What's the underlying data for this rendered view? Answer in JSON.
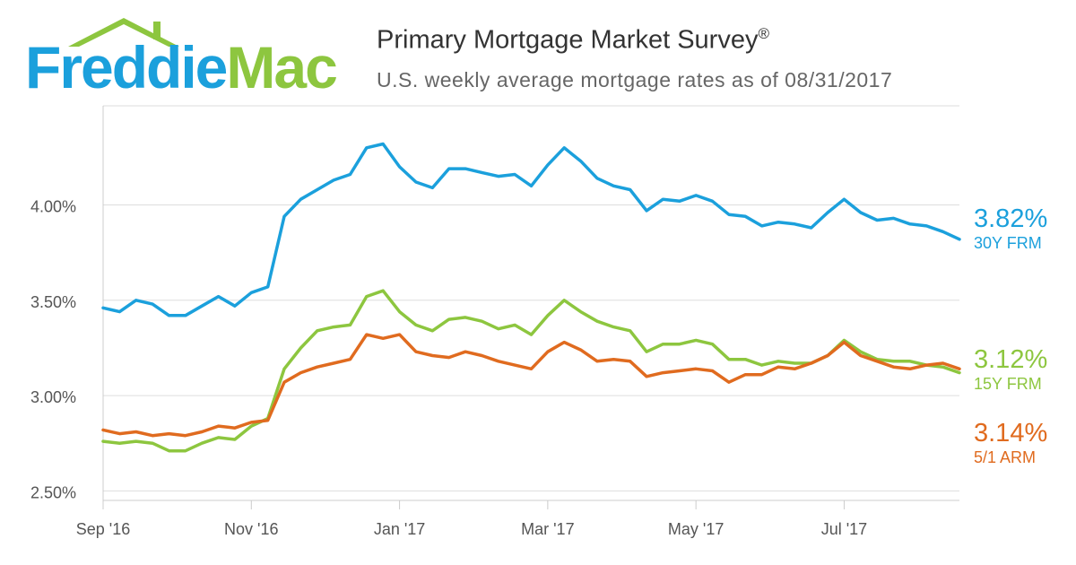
{
  "logo": {
    "text": "FreddieMac"
  },
  "header": {
    "title": "Primary Mortgage Market Survey",
    "title_mark": "®",
    "subtitle": "U.S. weekly average mortgage rates as of 08/31/2017"
  },
  "colors": {
    "frm30": "#1ba0dc",
    "frm15": "#8dc63f",
    "arm51": "#e06b1f",
    "brand_blue": "#1ba0dc",
    "brand_green": "#8dc63f"
  },
  "chart_data": {
    "type": "line",
    "title": "Primary Mortgage Market Survey",
    "subtitle": "U.S. weekly average mortgage rates as of 08/31/2017",
    "x_tick_labels": [
      "Sep '16",
      "Nov '16",
      "Jan '17",
      "Mar '17",
      "May '17",
      "Jul '17"
    ],
    "x_tick_indices": [
      0,
      9,
      18,
      27,
      36,
      45
    ],
    "y_tick_labels": [
      "2.50%",
      "3.00%",
      "3.50%",
      "4.00%"
    ],
    "y_tick_values": [
      2.5,
      3.0,
      3.5,
      4.0
    ],
    "ylim": [
      2.45,
      4.52
    ],
    "grid": true,
    "series": [
      {
        "key": "frm30",
        "name": "30Y FRM",
        "last_label": "3.82%",
        "values": [
          3.46,
          3.44,
          3.5,
          3.48,
          3.42,
          3.42,
          3.47,
          3.52,
          3.47,
          3.54,
          3.57,
          3.94,
          4.03,
          4.08,
          4.13,
          4.16,
          4.3,
          4.32,
          4.2,
          4.12,
          4.09,
          4.19,
          4.19,
          4.17,
          4.15,
          4.16,
          4.1,
          4.21,
          4.3,
          4.23,
          4.14,
          4.1,
          4.08,
          3.97,
          4.03,
          4.02,
          4.05,
          4.02,
          3.95,
          3.94,
          3.89,
          3.91,
          3.9,
          3.88,
          3.96,
          4.03,
          3.96,
          3.92,
          3.93,
          3.9,
          3.89,
          3.86,
          3.82
        ]
      },
      {
        "key": "frm15",
        "name": "15Y FRM",
        "last_label": "3.12%",
        "values": [
          2.76,
          2.75,
          2.76,
          2.75,
          2.71,
          2.71,
          2.75,
          2.78,
          2.77,
          2.84,
          2.88,
          3.14,
          3.25,
          3.34,
          3.36,
          3.37,
          3.52,
          3.55,
          3.44,
          3.37,
          3.34,
          3.4,
          3.41,
          3.39,
          3.35,
          3.37,
          3.32,
          3.42,
          3.5,
          3.44,
          3.39,
          3.36,
          3.34,
          3.23,
          3.27,
          3.27,
          3.29,
          3.27,
          3.19,
          3.19,
          3.16,
          3.18,
          3.17,
          3.17,
          3.21,
          3.29,
          3.23,
          3.19,
          3.18,
          3.18,
          3.16,
          3.15,
          3.12
        ]
      },
      {
        "key": "arm51",
        "name": "5/1 ARM",
        "last_label": "3.14%",
        "values": [
          2.82,
          2.8,
          2.81,
          2.79,
          2.8,
          2.79,
          2.81,
          2.84,
          2.83,
          2.86,
          2.87,
          3.07,
          3.12,
          3.15,
          3.17,
          3.19,
          3.32,
          3.3,
          3.32,
          3.23,
          3.21,
          3.2,
          3.23,
          3.21,
          3.18,
          3.16,
          3.14,
          3.23,
          3.28,
          3.24,
          3.18,
          3.19,
          3.18,
          3.1,
          3.12,
          3.13,
          3.14,
          3.13,
          3.07,
          3.11,
          3.11,
          3.15,
          3.14,
          3.17,
          3.21,
          3.28,
          3.21,
          3.18,
          3.15,
          3.14,
          3.16,
          3.17,
          3.14
        ]
      }
    ]
  }
}
